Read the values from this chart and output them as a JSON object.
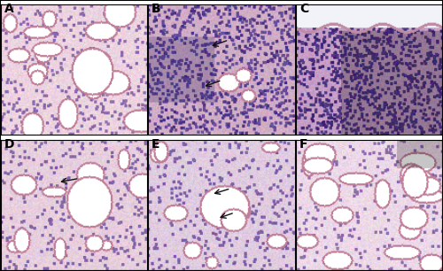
{
  "figure_size": [
    5.0,
    3.06
  ],
  "dpi": 100,
  "nrows": 2,
  "ncols": 3,
  "labels": [
    "A",
    "B",
    "C",
    "D",
    "E",
    "F"
  ],
  "label_fontsize": 10,
  "label_fontweight": "bold",
  "label_color": "black",
  "border_color": "black",
  "border_linewidth": 0.8,
  "background_color": "#ffffff",
  "outer_border_color": "black",
  "outer_border_linewidth": 1.5,
  "arrow_color": "#111111",
  "arrow_linewidth": 1.0
}
